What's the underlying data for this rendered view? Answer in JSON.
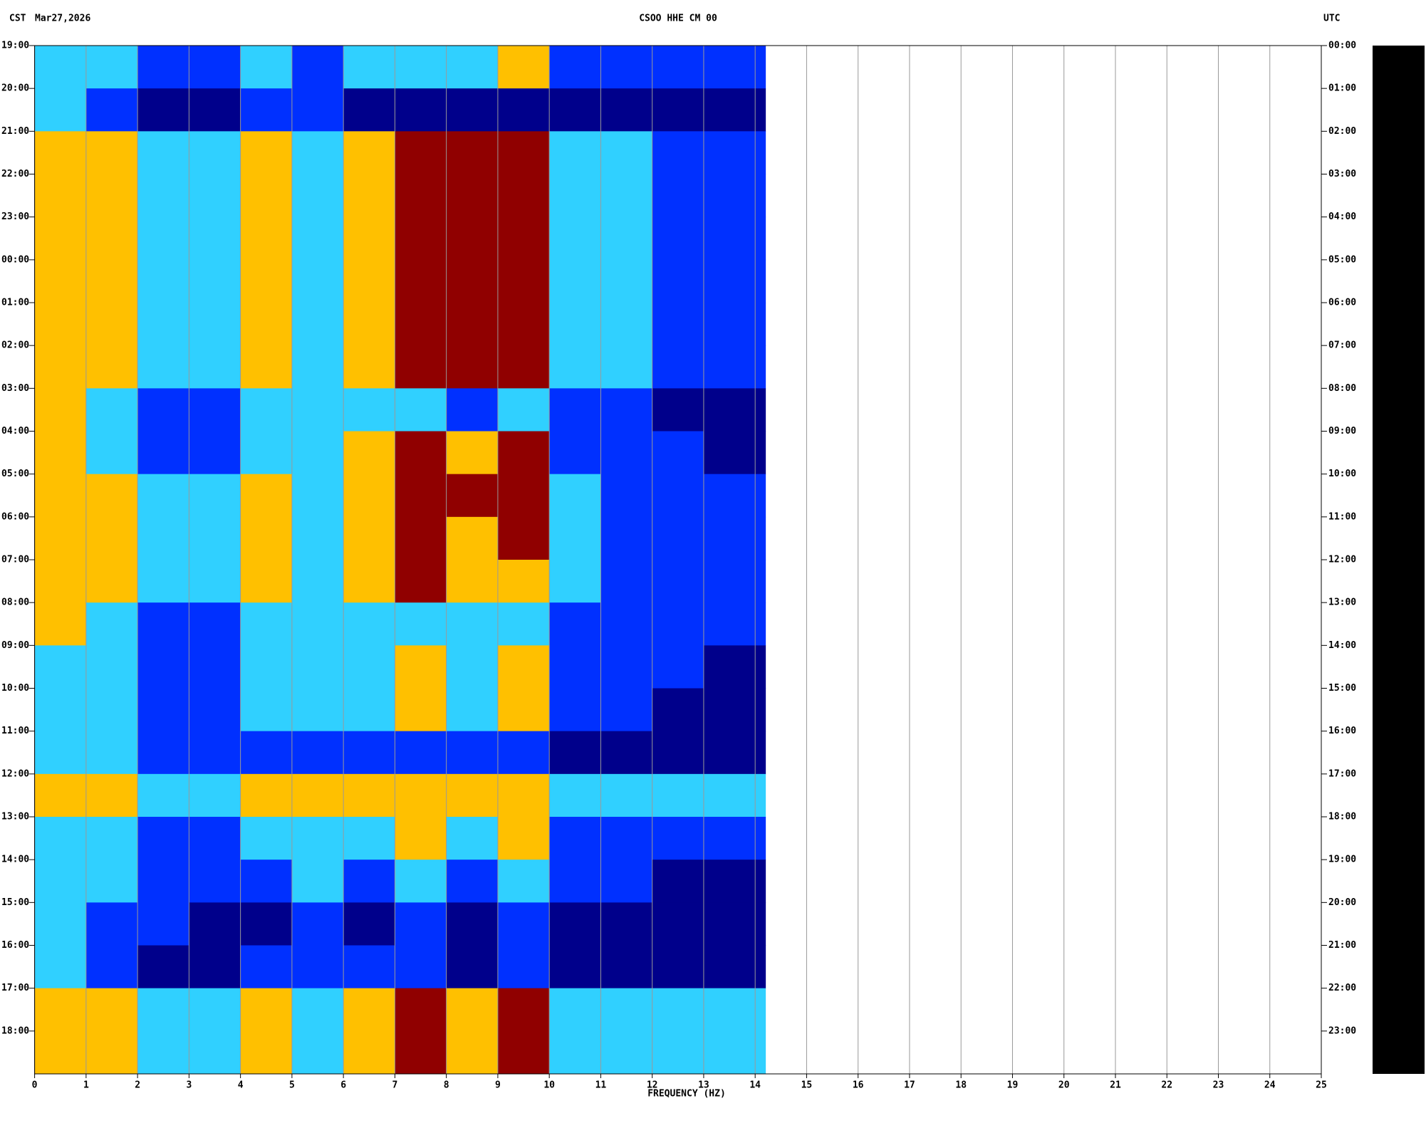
{
  "chart_data": {
    "type": "heatmap",
    "title": "CSOO HHE CM 00",
    "left_zone": "CST",
    "date": "Mar27,2026",
    "right_zone": "UTC",
    "xlabel": "FREQUENCY (HZ)",
    "xlim": [
      0,
      25
    ],
    "xticks": [
      0,
      1,
      2,
      3,
      4,
      5,
      6,
      7,
      8,
      9,
      10,
      11,
      12,
      13,
      14,
      15,
      16,
      17,
      18,
      19,
      20,
      21,
      22,
      23,
      24,
      25
    ],
    "grid": true,
    "time_labels_left": [
      "19:00",
      "20:00",
      "21:00",
      "22:00",
      "23:00",
      "00:00",
      "01:00",
      "02:00",
      "03:00",
      "04:00",
      "05:00",
      "06:00",
      "07:00",
      "08:00",
      "09:00",
      "10:00",
      "11:00",
      "12:00",
      "13:00",
      "14:00",
      "15:00",
      "16:00",
      "17:00",
      "18:00"
    ],
    "time_labels_right": [
      "00:00",
      "01:00",
      "02:00",
      "03:00",
      "04:00",
      "05:00",
      "06:00",
      "07:00",
      "08:00",
      "09:00",
      "10:00",
      "11:00",
      "12:00",
      "13:00",
      "14:00",
      "15:00",
      "16:00",
      "17:00",
      "18:00",
      "19:00",
      "20:00",
      "21:00",
      "22:00",
      "23:00"
    ],
    "bins": [
      0,
      1,
      2,
      3,
      4,
      5,
      6,
      7,
      8,
      9,
      10,
      11,
      12,
      13,
      14,
      14.2
    ],
    "colors": [
      "#00008b",
      "#0030ff",
      "#30d0ff",
      "#ffc000",
      "#900000"
    ],
    "values": [
      [
        2,
        2,
        1,
        1,
        2,
        1,
        2,
        2,
        2,
        3,
        1,
        1,
        1,
        1,
        1
      ],
      [
        2,
        1,
        0,
        0,
        1,
        1,
        0,
        0,
        0,
        0,
        0,
        0,
        0,
        0,
        0
      ],
      [
        3,
        3,
        2,
        2,
        3,
        2,
        3,
        4,
        4,
        4,
        2,
        2,
        1,
        1,
        1
      ],
      [
        3,
        3,
        2,
        2,
        3,
        2,
        3,
        4,
        4,
        4,
        2,
        2,
        1,
        1,
        1
      ],
      [
        3,
        3,
        2,
        2,
        3,
        2,
        3,
        4,
        4,
        4,
        2,
        2,
        1,
        1,
        1
      ],
      [
        3,
        3,
        2,
        2,
        3,
        2,
        3,
        4,
        4,
        4,
        2,
        2,
        1,
        1,
        1
      ],
      [
        3,
        3,
        2,
        2,
        3,
        2,
        3,
        4,
        4,
        4,
        2,
        2,
        1,
        1,
        1
      ],
      [
        3,
        3,
        2,
        2,
        3,
        2,
        3,
        4,
        4,
        4,
        2,
        2,
        1,
        1,
        1
      ],
      [
        3,
        2,
        1,
        1,
        2,
        2,
        2,
        2,
        1,
        2,
        1,
        1,
        0,
        0,
        0
      ],
      [
        3,
        2,
        1,
        1,
        2,
        2,
        3,
        4,
        3,
        4,
        1,
        1,
        1,
        0,
        0
      ],
      [
        3,
        3,
        2,
        2,
        3,
        2,
        3,
        4,
        4,
        4,
        2,
        1,
        1,
        1,
        1
      ],
      [
        3,
        3,
        2,
        2,
        3,
        2,
        3,
        4,
        3,
        4,
        2,
        1,
        1,
        1,
        1
      ],
      [
        3,
        3,
        2,
        2,
        3,
        2,
        3,
        4,
        3,
        3,
        2,
        1,
        1,
        1,
        1
      ],
      [
        3,
        2,
        1,
        1,
        2,
        2,
        2,
        2,
        2,
        2,
        1,
        1,
        1,
        1,
        1
      ],
      [
        2,
        2,
        1,
        1,
        2,
        2,
        2,
        3,
        2,
        3,
        1,
        1,
        1,
        0,
        0
      ],
      [
        2,
        2,
        1,
        1,
        2,
        2,
        2,
        3,
        2,
        3,
        1,
        1,
        0,
        0,
        0
      ],
      [
        2,
        2,
        1,
        1,
        1,
        1,
        1,
        1,
        1,
        1,
        0,
        0,
        0,
        0,
        0
      ],
      [
        3,
        3,
        2,
        2,
        3,
        3,
        3,
        3,
        3,
        3,
        2,
        2,
        2,
        2,
        2
      ],
      [
        2,
        2,
        1,
        1,
        2,
        2,
        2,
        3,
        2,
        3,
        1,
        1,
        1,
        1,
        1
      ],
      [
        2,
        2,
        1,
        1,
        1,
        2,
        1,
        2,
        1,
        2,
        1,
        1,
        0,
        0,
        0
      ],
      [
        2,
        1,
        1,
        0,
        0,
        1,
        0,
        1,
        0,
        1,
        0,
        0,
        0,
        0,
        0
      ],
      [
        2,
        1,
        0,
        0,
        1,
        1,
        1,
        1,
        0,
        1,
        0,
        0,
        0,
        0,
        0
      ],
      [
        3,
        3,
        2,
        2,
        3,
        2,
        3,
        4,
        3,
        4,
        2,
        2,
        2,
        2,
        2
      ],
      [
        3,
        3,
        2,
        2,
        3,
        2,
        3,
        4,
        3,
        4,
        2,
        2,
        2,
        2,
        2
      ]
    ]
  }
}
